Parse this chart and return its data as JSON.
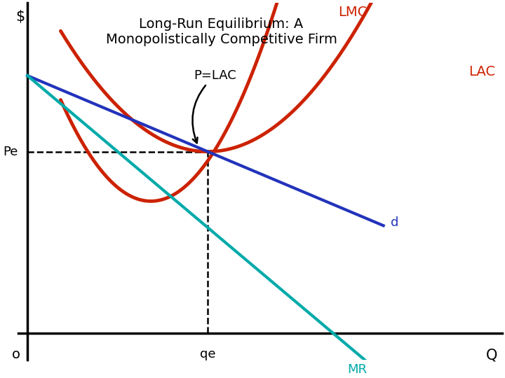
{
  "title": "Long-Run Equilibrium: A\nMonopolistically Competitive Firm",
  "title_fontsize": 14,
  "xlabel": "Q",
  "ylabel": "$",
  "background_color": "#ffffff",
  "red_color": "#cc2200",
  "d_color": "#2233bb",
  "mr_color": "#00aaaa",
  "dashed_color": "#000000",
  "label_lmc": "LMC",
  "label_lac": "LAC",
  "label_d": "d",
  "label_mr": "MR",
  "label_pe": "Pe",
  "label_qe": "qe",
  "label_o": "o",
  "label_plac": "P=LAC",
  "xmin": 0.0,
  "xmax": 10.0,
  "ymin": 0.0,
  "ymax": 10.0,
  "qe": 3.8,
  "pe": 5.5
}
